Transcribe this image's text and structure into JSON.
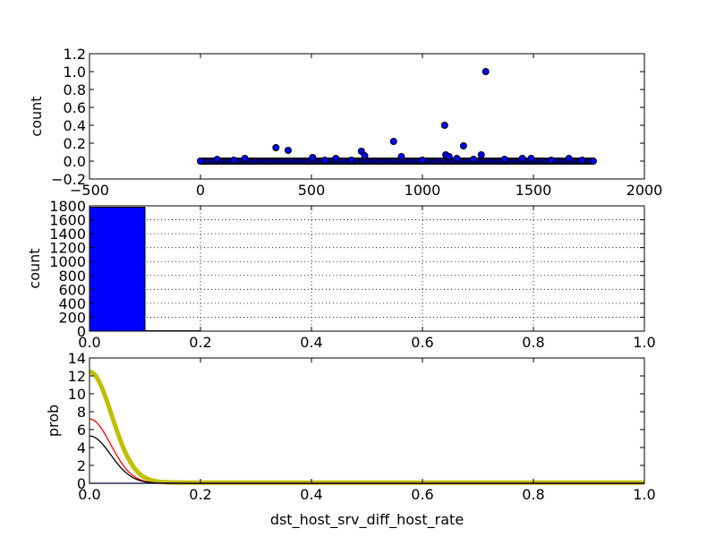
{
  "chart_data": [
    {
      "type": "scatter",
      "ylabel": "count",
      "xlabel": "",
      "xlim": [
        -500,
        2000
      ],
      "ylim": [
        -0.2,
        1.2
      ],
      "xticks": [
        "−500",
        "0",
        "500",
        "1000",
        "1500",
        "2000"
      ],
      "yticks": [
        "−0.2",
        "0.0",
        "0.2",
        "0.4",
        "0.6",
        "0.8",
        "1.0",
        "1.2"
      ],
      "grid": false,
      "marker_color": "#0000ff",
      "baseline_range": [
        0,
        1770
      ],
      "points": [
        [
          0,
          0.0
        ],
        [
          75,
          0.02
        ],
        [
          150,
          0.01
        ],
        [
          200,
          0.03
        ],
        [
          340,
          0.15
        ],
        [
          395,
          0.12
        ],
        [
          505,
          0.04
        ],
        [
          560,
          0.01
        ],
        [
          610,
          0.03
        ],
        [
          680,
          0.01
        ],
        [
          725,
          0.11
        ],
        [
          740,
          0.06
        ],
        [
          870,
          0.22
        ],
        [
          905,
          0.05
        ],
        [
          1000,
          0.01
        ],
        [
          1100,
          0.4
        ],
        [
          1105,
          0.07
        ],
        [
          1120,
          0.05
        ],
        [
          1155,
          0.03
        ],
        [
          1185,
          0.17
        ],
        [
          1230,
          0.02
        ],
        [
          1265,
          0.07
        ],
        [
          1285,
          1.0
        ],
        [
          1370,
          0.02
        ],
        [
          1450,
          0.03
        ],
        [
          1490,
          0.03
        ],
        [
          1580,
          0.01
        ],
        [
          1660,
          0.03
        ],
        [
          1720,
          0.01
        ],
        [
          1770,
          0.0
        ]
      ]
    },
    {
      "type": "bar",
      "ylabel": "count",
      "xlabel": "",
      "xlim": [
        0.0,
        1.0
      ],
      "ylim": [
        0,
        1800
      ],
      "xticks": [
        "0.0",
        "0.2",
        "0.4",
        "0.6",
        "0.8",
        "1.0"
      ],
      "yticks": [
        "0",
        "200",
        "400",
        "600",
        "800",
        "1000",
        "1200",
        "1400",
        "1600",
        "1800"
      ],
      "grid": true,
      "bar_color": "#0000ff",
      "bins": [
        {
          "from": 0.0,
          "to": 0.1,
          "value": 1780
        },
        {
          "from": 0.1,
          "to": 0.2,
          "value": 6
        }
      ]
    },
    {
      "type": "line",
      "ylabel": "prob",
      "xlabel": "dst_host_srv_diff_host_rate",
      "xlim": [
        0.0,
        1.0
      ],
      "ylim": [
        0,
        14
      ],
      "xticks": [
        "0.0",
        "0.2",
        "0.4",
        "0.6",
        "0.8",
        "1.0"
      ],
      "yticks": [
        "0",
        "2",
        "4",
        "6",
        "8",
        "10",
        "12",
        "14"
      ],
      "grid": false,
      "series": [
        {
          "color": "#bfbf00",
          "width": "thick",
          "peak": 12.4,
          "spread": 0.04
        },
        {
          "color": "#ff0000",
          "width": "thin",
          "peak": 7.2,
          "spread": 0.038
        },
        {
          "color": "#000000",
          "width": "thin",
          "peak": 5.3,
          "spread": 0.038
        },
        {
          "color": "#0000ff",
          "width": "thin",
          "peak": 0.0,
          "spread": 0.04
        }
      ]
    }
  ]
}
